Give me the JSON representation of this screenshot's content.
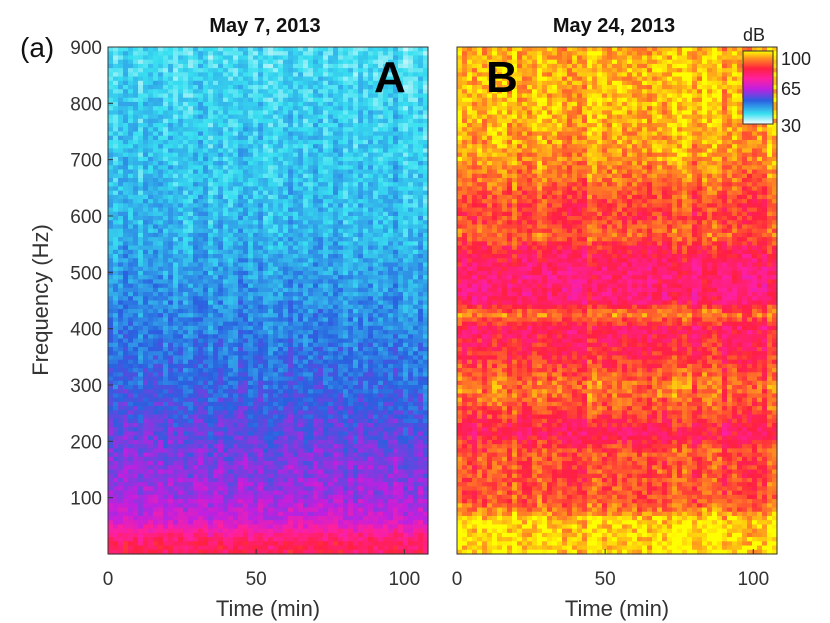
{
  "figure_label": "(a)",
  "chart_data": [
    {
      "type": "heatmap",
      "title": "May 7, 2013",
      "panel_letter": "A",
      "xlabel": "Time (min)",
      "ylabel": "Frequency (Hz)",
      "xlim": [
        0,
        108
      ],
      "ylim": [
        0,
        900
      ],
      "xticks": [
        "0",
        "50",
        "100"
      ],
      "yticks": [
        "100",
        "200",
        "300",
        "400",
        "500",
        "600",
        "700",
        "800",
        "900"
      ],
      "colormap": "cool-blue",
      "intensity_profile_db": [
        {
          "freq": 0,
          "db": 80
        },
        {
          "freq": 20,
          "db": 80
        },
        {
          "freq": 40,
          "db": 73
        },
        {
          "freq": 60,
          "db": 66
        },
        {
          "freq": 100,
          "db": 62
        },
        {
          "freq": 200,
          "db": 57
        },
        {
          "freq": 300,
          "db": 52
        },
        {
          "freq": 400,
          "db": 49
        },
        {
          "freq": 500,
          "db": 46
        },
        {
          "freq": 600,
          "db": 43
        },
        {
          "freq": 700,
          "db": 42
        },
        {
          "freq": 800,
          "db": 41
        },
        {
          "freq": 900,
          "db": 39
        }
      ]
    },
    {
      "type": "heatmap",
      "title": "May 24, 2013",
      "panel_letter": "B",
      "xlabel": "Time (min)",
      "ylabel": "",
      "xlim": [
        0,
        108
      ],
      "ylim": [
        0,
        900
      ],
      "xticks": [
        "0",
        "50",
        "100"
      ],
      "yticks": [],
      "colormap": "hot-pink",
      "intensity_profile_db": [
        {
          "freq": 0,
          "db": 98
        },
        {
          "freq": 60,
          "db": 98
        },
        {
          "freq": 80,
          "db": 90
        },
        {
          "freq": 100,
          "db": 88
        },
        {
          "freq": 140,
          "db": 87
        },
        {
          "freq": 180,
          "db": 88
        },
        {
          "freq": 215,
          "db": 80
        },
        {
          "freq": 260,
          "db": 88
        },
        {
          "freq": 300,
          "db": 91
        },
        {
          "freq": 350,
          "db": 84
        },
        {
          "freq": 400,
          "db": 80
        },
        {
          "freq": 425,
          "db": 92
        },
        {
          "freq": 450,
          "db": 78
        },
        {
          "freq": 500,
          "db": 78
        },
        {
          "freq": 545,
          "db": 83
        },
        {
          "freq": 565,
          "db": 90
        },
        {
          "freq": 600,
          "db": 85
        },
        {
          "freq": 650,
          "db": 89
        },
        {
          "freq": 700,
          "db": 93
        },
        {
          "freq": 800,
          "db": 96
        },
        {
          "freq": 900,
          "db": 95
        }
      ]
    }
  ],
  "colorbar": {
    "title": "dB",
    "ticks": [
      "100",
      "65",
      "30"
    ],
    "range": [
      30,
      100
    ],
    "colors": [
      "#ffffff",
      "#38e0f0",
      "#2a60e0",
      "#c020e0",
      "#ff20a0",
      "#ff2040",
      "#ff9020",
      "#ffff00"
    ]
  }
}
